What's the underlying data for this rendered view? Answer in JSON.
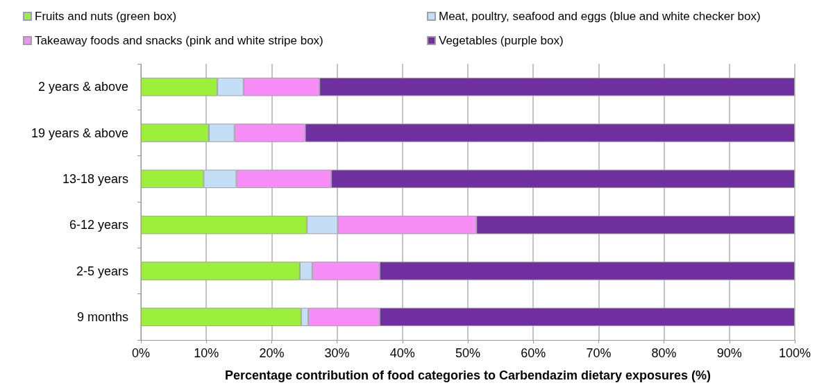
{
  "chart_data": {
    "type": "bar",
    "orientation": "horizontal",
    "stacked": true,
    "xlabel": "Percentage contribution of food categories to Carbendazim dietary exposures (%)",
    "categories": [
      "2 years & above",
      "19 years & above",
      "13-18 years",
      "6-12 years",
      "2-5 years",
      "9 months"
    ],
    "series": [
      {
        "name": "Fruits and nuts (green box)",
        "color": "#9cf03c",
        "values": [
          11.7,
          10.4,
          9.6,
          25.4,
          24.3,
          24.5
        ]
      },
      {
        "name": "Meat, poultry, seafood and eggs (blue and white checker box)",
        "color": "#c4def8",
        "values": [
          4.0,
          3.9,
          5.0,
          4.7,
          1.9,
          1.1
        ]
      },
      {
        "name": "Takeaway foods and snacks (pink and white stripe box)",
        "color": "#f78ef7",
        "values": [
          11.6,
          10.8,
          14.5,
          21.2,
          10.3,
          10.9
        ]
      },
      {
        "name": "Vegetables (purple box)",
        "color": "#7030a0",
        "values": [
          72.7,
          74.9,
          70.9,
          48.7,
          63.5,
          63.5
        ]
      }
    ],
    "xlim": [
      0,
      100
    ],
    "xticks": [
      {
        "value": 0,
        "label": "0%"
      },
      {
        "value": 10,
        "label": "10%"
      },
      {
        "value": 20,
        "label": "20%"
      },
      {
        "value": 30,
        "label": "30%"
      },
      {
        "value": 40,
        "label": "40%"
      },
      {
        "value": 50,
        "label": "50%"
      },
      {
        "value": 60,
        "label": "60%"
      },
      {
        "value": 70,
        "label": "70%"
      },
      {
        "value": 80,
        "label": "80%"
      },
      {
        "value": 90,
        "label": "90%"
      },
      {
        "value": 100,
        "label": "100%"
      }
    ],
    "grid": "x",
    "legend": "top"
  }
}
